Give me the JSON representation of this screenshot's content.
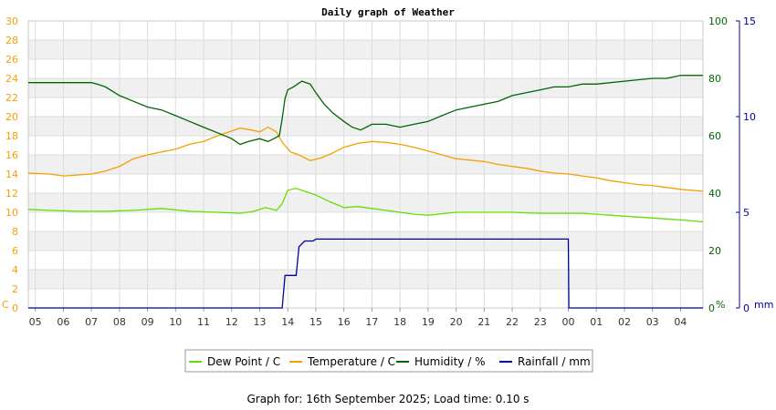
{
  "chart_data": {
    "type": "line",
    "title": "Daily graph of Weather",
    "x_tick_labels": [
      "05",
      "06",
      "07",
      "08",
      "09",
      "10",
      "11",
      "12",
      "13",
      "14",
      "15",
      "16",
      "17",
      "18",
      "19",
      "20",
      "21",
      "22",
      "23",
      "00",
      "01",
      "02",
      "03",
      "04"
    ],
    "x_start_hour": 4.75,
    "x_end_hour": 28.8,
    "grid": true,
    "legend_position": "bottom",
    "axes": {
      "left": {
        "unit_label": "C",
        "ticks": [
          0,
          2,
          4,
          6,
          8,
          10,
          12,
          14,
          16,
          18,
          20,
          22,
          24,
          26,
          28,
          30
        ],
        "range": [
          0,
          30
        ],
        "color": "#f5a000"
      },
      "right_humidity": {
        "unit_label": "%",
        "ticks": [
          0,
          20,
          40,
          60,
          80,
          100
        ],
        "range": [
          0,
          100
        ],
        "color": "#006400"
      },
      "right_rain": {
        "unit_label": "mm",
        "ticks": [
          0,
          5,
          10,
          15
        ],
        "range": [
          0,
          15
        ],
        "color": "#0000a0"
      }
    },
    "series": [
      {
        "name": "Dew Point / C",
        "color": "#66dd00",
        "axis": "left",
        "points": [
          [
            4.75,
            10.3
          ],
          [
            5.5,
            10.2
          ],
          [
            6.5,
            10.1
          ],
          [
            7.5,
            10.1
          ],
          [
            8.5,
            10.2
          ],
          [
            9.5,
            10.4
          ],
          [
            10.5,
            10.1
          ],
          [
            11.5,
            10.0
          ],
          [
            12.3,
            9.9
          ],
          [
            12.8,
            10.1
          ],
          [
            13.2,
            10.5
          ],
          [
            13.6,
            10.2
          ],
          [
            13.8,
            10.9
          ],
          [
            14.0,
            12.3
          ],
          [
            14.3,
            12.5
          ],
          [
            14.6,
            12.2
          ],
          [
            15.0,
            11.8
          ],
          [
            15.5,
            11.1
          ],
          [
            16.0,
            10.5
          ],
          [
            16.5,
            10.6
          ],
          [
            17.0,
            10.4
          ],
          [
            17.5,
            10.2
          ],
          [
            18.0,
            10.0
          ],
          [
            18.5,
            9.8
          ],
          [
            19.0,
            9.7
          ],
          [
            20.0,
            10.0
          ],
          [
            21.0,
            10.0
          ],
          [
            22.0,
            10.0
          ],
          [
            23.0,
            9.9
          ],
          [
            24.0,
            9.9
          ],
          [
            24.5,
            9.9
          ],
          [
            25.0,
            9.8
          ],
          [
            25.5,
            9.7
          ],
          [
            26.0,
            9.6
          ],
          [
            27.0,
            9.4
          ],
          [
            27.5,
            9.3
          ],
          [
            28.0,
            9.2
          ],
          [
            28.8,
            9.0
          ]
        ]
      },
      {
        "name": "Temperature / C",
        "color": "#f5a000",
        "axis": "left",
        "points": [
          [
            4.75,
            14.1
          ],
          [
            5.5,
            14.0
          ],
          [
            6.0,
            13.8
          ],
          [
            6.5,
            13.9
          ],
          [
            7.0,
            14.0
          ],
          [
            7.5,
            14.3
          ],
          [
            8.0,
            14.8
          ],
          [
            8.5,
            15.6
          ],
          [
            9.0,
            16.0
          ],
          [
            9.5,
            16.3
          ],
          [
            10.0,
            16.6
          ],
          [
            10.5,
            17.1
          ],
          [
            11.0,
            17.4
          ],
          [
            11.5,
            18.0
          ],
          [
            12.0,
            18.5
          ],
          [
            12.3,
            18.8
          ],
          [
            12.7,
            18.6
          ],
          [
            13.0,
            18.4
          ],
          [
            13.3,
            18.9
          ],
          [
            13.6,
            18.4
          ],
          [
            13.8,
            17.3
          ],
          [
            14.1,
            16.3
          ],
          [
            14.4,
            16.0
          ],
          [
            14.8,
            15.4
          ],
          [
            15.2,
            15.7
          ],
          [
            15.6,
            16.2
          ],
          [
            16.0,
            16.8
          ],
          [
            16.5,
            17.2
          ],
          [
            17.0,
            17.4
          ],
          [
            17.5,
            17.3
          ],
          [
            18.0,
            17.1
          ],
          [
            18.5,
            16.8
          ],
          [
            19.0,
            16.4
          ],
          [
            19.5,
            16.0
          ],
          [
            20.0,
            15.6
          ],
          [
            21.0,
            15.3
          ],
          [
            21.5,
            15.0
          ],
          [
            22.0,
            14.8
          ],
          [
            22.5,
            14.6
          ],
          [
            23.0,
            14.3
          ],
          [
            23.5,
            14.1
          ],
          [
            24.0,
            14.0
          ],
          [
            24.5,
            13.8
          ],
          [
            25.0,
            13.6
          ],
          [
            25.5,
            13.3
          ],
          [
            26.0,
            13.1
          ],
          [
            26.5,
            12.9
          ],
          [
            27.0,
            12.8
          ],
          [
            27.5,
            12.6
          ],
          [
            28.0,
            12.4
          ],
          [
            28.8,
            12.2
          ]
        ]
      },
      {
        "name": "Humidity / %",
        "color": "#006400",
        "axis": "right_humidity",
        "points": [
          [
            4.75,
            78.5
          ],
          [
            7.0,
            78.5
          ],
          [
            7.2,
            78
          ],
          [
            7.5,
            77
          ],
          [
            8.0,
            74
          ],
          [
            8.5,
            72
          ],
          [
            9.0,
            70
          ],
          [
            9.5,
            69
          ],
          [
            10.0,
            67
          ],
          [
            10.5,
            65
          ],
          [
            11.0,
            63
          ],
          [
            11.5,
            61
          ],
          [
            12.0,
            59
          ],
          [
            12.3,
            57
          ],
          [
            12.6,
            58
          ],
          [
            13.0,
            59
          ],
          [
            13.3,
            58
          ],
          [
            13.5,
            59
          ],
          [
            13.7,
            60
          ],
          [
            13.8,
            66
          ],
          [
            13.9,
            73
          ],
          [
            14.0,
            76
          ],
          [
            14.2,
            77
          ],
          [
            14.5,
            79
          ],
          [
            14.8,
            78
          ],
          [
            15.0,
            75
          ],
          [
            15.3,
            71
          ],
          [
            15.6,
            68
          ],
          [
            16.0,
            65
          ],
          [
            16.3,
            63
          ],
          [
            16.6,
            62
          ],
          [
            17.0,
            64
          ],
          [
            17.5,
            64
          ],
          [
            18.0,
            63
          ],
          [
            18.5,
            64
          ],
          [
            19.0,
            65
          ],
          [
            19.5,
            67
          ],
          [
            20.0,
            69
          ],
          [
            20.5,
            70
          ],
          [
            21.0,
            71
          ],
          [
            21.5,
            72
          ],
          [
            22.0,
            74
          ],
          [
            22.5,
            75
          ],
          [
            23.0,
            76
          ],
          [
            23.5,
            77
          ],
          [
            24.0,
            77
          ],
          [
            24.5,
            78
          ],
          [
            25.0,
            78
          ],
          [
            26.0,
            79
          ],
          [
            27.0,
            80
          ],
          [
            27.5,
            80
          ],
          [
            28.0,
            81
          ],
          [
            28.8,
            81
          ]
        ]
      },
      {
        "name": "Rainfall / mm",
        "color": "#0000a0",
        "axis": "right_rain",
        "points": [
          [
            4.75,
            0
          ],
          [
            13.8,
            0
          ],
          [
            13.9,
            1.7
          ],
          [
            14.3,
            1.7
          ],
          [
            14.4,
            3.2
          ],
          [
            14.6,
            3.5
          ],
          [
            14.9,
            3.5
          ],
          [
            15.0,
            3.6
          ],
          [
            24.0,
            3.6
          ],
          [
            24.02,
            0
          ],
          [
            28.8,
            0
          ]
        ]
      }
    ],
    "legend": [
      "Dew Point / C",
      "Temperature / C",
      "Humidity / %",
      "Rainfall / mm"
    ]
  },
  "footer": "Graph for: 16th September 2025; Load time: 0.10 s"
}
